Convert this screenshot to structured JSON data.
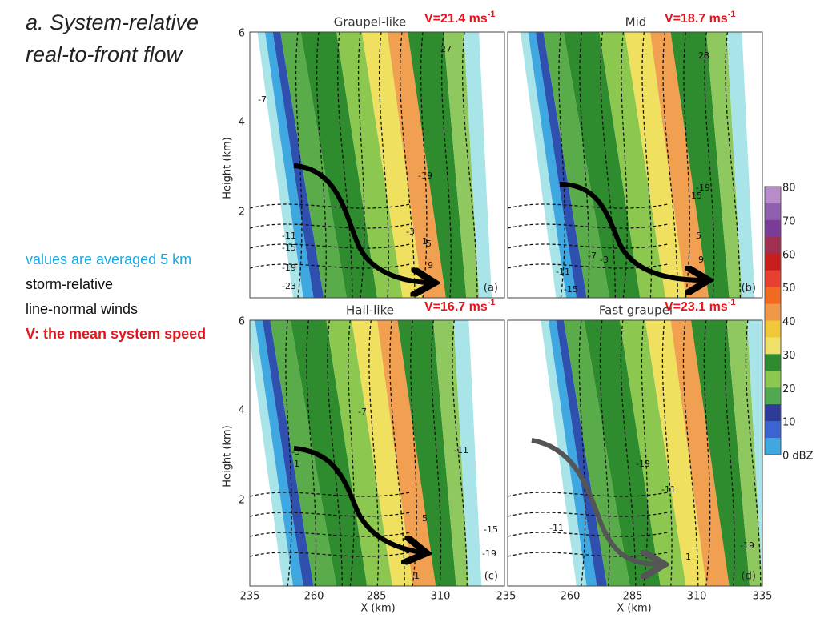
{
  "title": {
    "line1": "a. System-relative",
    "line2": "real-to-front flow"
  },
  "notes": [
    "values are averaged 5 km",
    "storm-relative",
    "line-normal winds",
    "V: the mean system speed"
  ],
  "panels": [
    {
      "title": "Graupel-like",
      "speed": "V=21.4 ms",
      "speed_exp": "-1",
      "tag": "(a)",
      "contour_labels": [
        "-11",
        "-15",
        "-19",
        "-23",
        "-19",
        "-3",
        "1",
        "5",
        "9",
        "27",
        "-7"
      ]
    },
    {
      "title": "Mid",
      "speed": "V=18.7 ms",
      "speed_exp": "-1",
      "tag": "(b)",
      "contour_labels": [
        "-11",
        "-15",
        "-7",
        "-3",
        "-15",
        "-19",
        "5",
        "9",
        "28"
      ]
    },
    {
      "title": "Hail-like",
      "speed": "V=16.7 ms",
      "speed_exp": "-1",
      "tag": "(c)",
      "contour_labels": [
        "-7",
        "-3",
        "1",
        "5",
        "-11",
        "-15",
        "-19",
        "1"
      ]
    },
    {
      "title": "Fast graupel",
      "speed": "V=23.1 ms",
      "speed_exp": "-1",
      "tag": "(d)",
      "contour_labels": [
        "-11",
        "-19",
        "-11",
        "-19",
        "1"
      ]
    }
  ],
  "axes": {
    "y_label": "Height (km)",
    "x_label": "X (km)",
    "y_ticks": [
      "6",
      "4",
      "2"
    ],
    "x_ticks": [
      "235",
      "260",
      "285",
      "310",
      "235",
      "260",
      "285",
      "310",
      "335"
    ]
  },
  "colorbar": {
    "ticks": [
      "80",
      "70",
      "60",
      "50",
      "40",
      "30",
      "20",
      "10",
      "0 dBZ"
    ]
  }
}
